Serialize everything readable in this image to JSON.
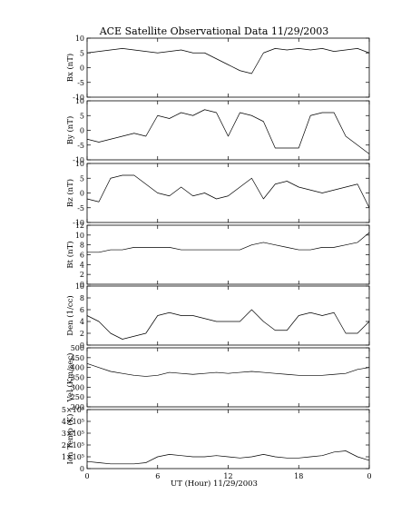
{
  "chart_data": {
    "type": "line",
    "title": "ACE Satellite Observational Data   11/29/2003",
    "xlabel": "UT (Hour)   11/29/2003",
    "x_ticks": [
      "0",
      "6",
      "12",
      "18",
      "0"
    ],
    "x_range_hours": [
      0,
      24
    ],
    "panels": [
      {
        "ylabel": "Bx (nT)",
        "ylim": [
          -10,
          10
        ],
        "yticks": [
          "-10",
          "-5",
          "0",
          "5",
          "10"
        ],
        "ytick_values": [
          -10,
          -5,
          0,
          5,
          10
        ],
        "series": [
          {
            "x": [
              0,
              1,
              2,
              3,
              4,
              5,
              6,
              7,
              8,
              9,
              10,
              11,
              12,
              13,
              14,
              15,
              16,
              17,
              18,
              19,
              20,
              21,
              22,
              23,
              24
            ],
            "y": [
              5,
              5.5,
              6,
              6.5,
              6,
              5.5,
              5,
              5.5,
              6,
              5,
              5,
              3,
              1,
              -1,
              -2,
              5,
              6.5,
              6,
              6.5,
              6,
              6.5,
              5.5,
              6,
              6.5,
              5
            ]
          }
        ]
      },
      {
        "ylabel": "By (nT)",
        "ylim": [
          -10,
          10
        ],
        "yticks": [
          "-10",
          "-5",
          "0",
          "5",
          "10"
        ],
        "ytick_values": [
          -10,
          -5,
          0,
          5,
          10
        ],
        "series": [
          {
            "x": [
              0,
              1,
              2,
              3,
              4,
              5,
              6,
              7,
              8,
              9,
              10,
              11,
              12,
              13,
              14,
              15,
              16,
              17,
              18,
              19,
              20,
              21,
              22,
              23,
              24
            ],
            "y": [
              -3,
              -4,
              -3,
              -2,
              -1,
              -2,
              5,
              4,
              6,
              5,
              7,
              6,
              -2,
              6,
              5,
              3,
              -6,
              -6,
              -6,
              5,
              6,
              6,
              -2,
              -5,
              -8
            ]
          }
        ]
      },
      {
        "ylabel": "Bz (nT)",
        "ylim": [
          -10,
          10
        ],
        "yticks": [
          "-10",
          "-5",
          "0",
          "5",
          "10"
        ],
        "ytick_values": [
          -10,
          -5,
          0,
          5,
          10
        ],
        "series": [
          {
            "x": [
              0,
              1,
              2,
              3,
              4,
              5,
              6,
              7,
              8,
              9,
              10,
              11,
              12,
              13,
              14,
              15,
              16,
              17,
              18,
              19,
              20,
              21,
              22,
              23,
              24
            ],
            "y": [
              -2,
              -3,
              5,
              6,
              6,
              3,
              0,
              -1,
              2,
              -1,
              0,
              -2,
              -1,
              2,
              5,
              -2,
              3,
              4,
              2,
              1,
              0,
              1,
              2,
              3,
              -5
            ]
          }
        ]
      },
      {
        "ylabel": "Bt (nT)",
        "ylim": [
          0,
          12
        ],
        "yticks": [
          "0",
          "2",
          "4",
          "6",
          "8",
          "10",
          "12"
        ],
        "ytick_values": [
          0,
          2,
          4,
          6,
          8,
          10,
          12
        ],
        "series": [
          {
            "x": [
              0,
              1,
              2,
              3,
              4,
              5,
              6,
              7,
              8,
              9,
              10,
              11,
              12,
              13,
              14,
              15,
              16,
              17,
              18,
              19,
              20,
              21,
              22,
              23,
              24
            ],
            "y": [
              6.5,
              6.5,
              7,
              7,
              7.5,
              7.5,
              7.5,
              7.5,
              7,
              7,
              7,
              7,
              7,
              7,
              8,
              8.5,
              8,
              7.5,
              7,
              7,
              7.5,
              7.5,
              8,
              8.5,
              10.5
            ]
          }
        ]
      },
      {
        "ylabel": "Den (1/cc)",
        "ylim": [
          0,
          10
        ],
        "yticks": [
          "0",
          "2",
          "4",
          "6",
          "8",
          "10"
        ],
        "ytick_values": [
          0,
          2,
          4,
          6,
          8,
          10
        ],
        "series": [
          {
            "x": [
              0,
              1,
              2,
              3,
              4,
              5,
              6,
              7,
              8,
              9,
              10,
              11,
              12,
              13,
              14,
              15,
              16,
              17,
              18,
              19,
              20,
              21,
              22,
              23,
              24
            ],
            "y": [
              5,
              4,
              2,
              1,
              1.5,
              2,
              5,
              5.5,
              5,
              5,
              4.5,
              4,
              4,
              4,
              6,
              4,
              2.5,
              2.5,
              5,
              5.5,
              5,
              5.5,
              2,
              2,
              4
            ]
          }
        ]
      },
      {
        "ylabel": "Vel (Km/sec)",
        "ylim": [
          200,
          500
        ],
        "yticks": [
          "200",
          "250",
          "300",
          "350",
          "400",
          "450",
          "500"
        ],
        "ytick_values": [
          200,
          250,
          300,
          350,
          400,
          450,
          500
        ],
        "series": [
          {
            "x": [
              0,
              1,
              2,
              3,
              4,
              5,
              6,
              7,
              8,
              9,
              10,
              11,
              12,
              13,
              14,
              15,
              16,
              17,
              18,
              19,
              20,
              21,
              22,
              23,
              24
            ],
            "y": [
              420,
              400,
              380,
              370,
              360,
              355,
              360,
              375,
              370,
              365,
              370,
              375,
              370,
              375,
              380,
              375,
              370,
              365,
              360,
              360,
              360,
              365,
              370,
              390,
              400
            ]
          }
        ]
      },
      {
        "ylabel": "Ion Temp (K)",
        "ylim": [
          0,
          500000
        ],
        "yticks": [
          "0",
          "1×10⁵",
          "2×10⁵",
          "3×10⁵",
          "4×10⁵",
          "5×10⁵"
        ],
        "ytick_values": [
          0,
          100000,
          200000,
          300000,
          400000,
          500000
        ],
        "series": [
          {
            "x": [
              0,
              1,
              2,
              3,
              4,
              5,
              6,
              7,
              8,
              9,
              10,
              11,
              12,
              13,
              14,
              15,
              16,
              17,
              18,
              19,
              20,
              21,
              22,
              23,
              24
            ],
            "y": [
              60000,
              50000,
              40000,
              40000,
              40000,
              50000,
              100000,
              120000,
              110000,
              100000,
              100000,
              110000,
              100000,
              90000,
              100000,
              120000,
              100000,
              90000,
              90000,
              100000,
              110000,
              140000,
              150000,
              100000,
              70000
            ]
          }
        ]
      }
    ]
  }
}
